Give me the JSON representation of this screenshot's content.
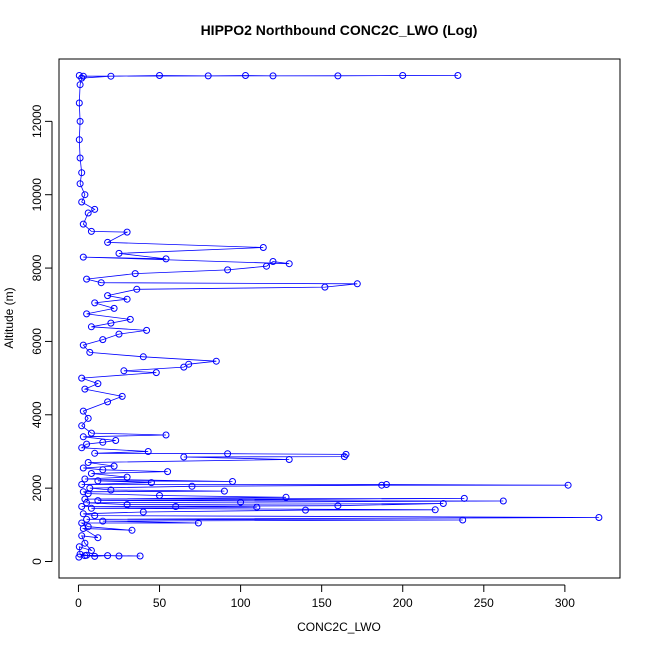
{
  "chart_data": {
    "type": "scatter",
    "title": "HIPPO2 Northbound CONC2C_LWO (Log)",
    "xlabel": "CONC2C_LWO",
    "ylabel": "Altitude (m)",
    "xlim": [
      -12,
      334
    ],
    "ylim": [
      -450,
      13700
    ],
    "xticks": [
      0,
      50,
      100,
      150,
      200,
      250,
      300
    ],
    "yticks": [
      0,
      2000,
      4000,
      6000,
      8000,
      10000,
      12000
    ],
    "grid": false,
    "legend": "none",
    "color": "#0000ff",
    "series": [
      {
        "points": [
          [
            0.3,
            120
          ],
          [
            4,
            160
          ],
          [
            10,
            140
          ],
          [
            18,
            160
          ],
          [
            25,
            150
          ],
          [
            38,
            150
          ],
          [
            5,
            170
          ],
          [
            1,
            200
          ],
          [
            0.5,
            400
          ],
          [
            8,
            300
          ],
          [
            4,
            500
          ],
          [
            2,
            700
          ],
          [
            12,
            650
          ],
          [
            3,
            900
          ],
          [
            33,
            850
          ],
          [
            6,
            950
          ],
          [
            2,
            1050
          ],
          [
            74,
            1050
          ],
          [
            15,
            1100
          ],
          [
            237,
            1130
          ],
          [
            5,
            1150
          ],
          [
            321,
            1200
          ],
          [
            10,
            1250
          ],
          [
            3,
            1300
          ],
          [
            40,
            1350
          ],
          [
            140,
            1400
          ],
          [
            220,
            1410
          ],
          [
            8,
            1450
          ],
          [
            110,
            1480
          ],
          [
            60,
            1500
          ],
          [
            2,
            1500
          ],
          [
            160,
            1520
          ],
          [
            225,
            1580
          ],
          [
            30,
            1550
          ],
          [
            5,
            1600
          ],
          [
            100,
            1620
          ],
          [
            262,
            1650
          ],
          [
            12,
            1660
          ],
          [
            238,
            1720
          ],
          [
            4,
            1700
          ],
          [
            128,
            1750
          ],
          [
            50,
            1800
          ],
          [
            6,
            1850
          ],
          [
            3,
            1900
          ],
          [
            90,
            1920
          ],
          [
            20,
            1950
          ],
          [
            7,
            2000
          ],
          [
            70,
            2050
          ],
          [
            187,
            2080
          ],
          [
            302,
            2080
          ],
          [
            190,
            2100
          ],
          [
            2,
            2100
          ],
          [
            45,
            2150
          ],
          [
            12,
            2200
          ],
          [
            95,
            2180
          ],
          [
            4,
            2250
          ],
          [
            30,
            2300
          ],
          [
            8,
            2400
          ],
          [
            55,
            2450
          ],
          [
            15,
            2500
          ],
          [
            3,
            2550
          ],
          [
            22,
            2600
          ],
          [
            6,
            2700
          ],
          [
            130,
            2780
          ],
          [
            65,
            2850
          ],
          [
            164,
            2860
          ],
          [
            165,
            2920
          ],
          [
            92,
            2940
          ],
          [
            10,
            2950
          ],
          [
            43,
            3000
          ],
          [
            2,
            3100
          ],
          [
            5,
            3200
          ],
          [
            15,
            3250
          ],
          [
            23,
            3300
          ],
          [
            3,
            3400
          ],
          [
            54,
            3450
          ],
          [
            8,
            3500
          ],
          [
            2,
            3700
          ],
          [
            6,
            3900
          ],
          [
            3,
            4100
          ],
          [
            18,
            4350
          ],
          [
            27,
            4500
          ],
          [
            4,
            4700
          ],
          [
            12,
            4850
          ],
          [
            2,
            5000
          ],
          [
            48,
            5150
          ],
          [
            28,
            5200
          ],
          [
            65,
            5300
          ],
          [
            68,
            5380
          ],
          [
            85,
            5460
          ],
          [
            40,
            5580
          ],
          [
            7,
            5700
          ],
          [
            3,
            5900
          ],
          [
            15,
            6050
          ],
          [
            25,
            6200
          ],
          [
            42,
            6300
          ],
          [
            8,
            6400
          ],
          [
            20,
            6500
          ],
          [
            32,
            6600
          ],
          [
            5,
            6750
          ],
          [
            22,
            6900
          ],
          [
            10,
            7050
          ],
          [
            30,
            7150
          ],
          [
            18,
            7250
          ],
          [
            36,
            7420
          ],
          [
            152,
            7480
          ],
          [
            172,
            7570
          ],
          [
            14,
            7600
          ],
          [
            5,
            7700
          ],
          [
            35,
            7850
          ],
          [
            92,
            7950
          ],
          [
            116,
            8050
          ],
          [
            120,
            8180
          ],
          [
            130,
            8120
          ],
          [
            3,
            8300
          ],
          [
            54,
            8250
          ],
          [
            25,
            8400
          ],
          [
            114,
            8560
          ],
          [
            18,
            8700
          ],
          [
            30,
            8980
          ],
          [
            8,
            9000
          ],
          [
            3,
            9200
          ],
          [
            6,
            9500
          ],
          [
            10,
            9600
          ],
          [
            2,
            9800
          ],
          [
            4,
            10000
          ],
          [
            1,
            10300
          ],
          [
            2,
            10600
          ],
          [
            1,
            11000
          ],
          [
            0.5,
            11500
          ],
          [
            1,
            12000
          ],
          [
            0.5,
            12500
          ],
          [
            1,
            13000
          ],
          [
            2,
            13180
          ],
          [
            20,
            13230
          ],
          [
            50,
            13250
          ],
          [
            80,
            13240
          ],
          [
            103,
            13250
          ],
          [
            120,
            13240
          ],
          [
            160,
            13240
          ],
          [
            200,
            13250
          ],
          [
            234,
            13250
          ],
          [
            3,
            13230
          ],
          [
            0.5,
            13250
          ]
        ]
      }
    ]
  }
}
